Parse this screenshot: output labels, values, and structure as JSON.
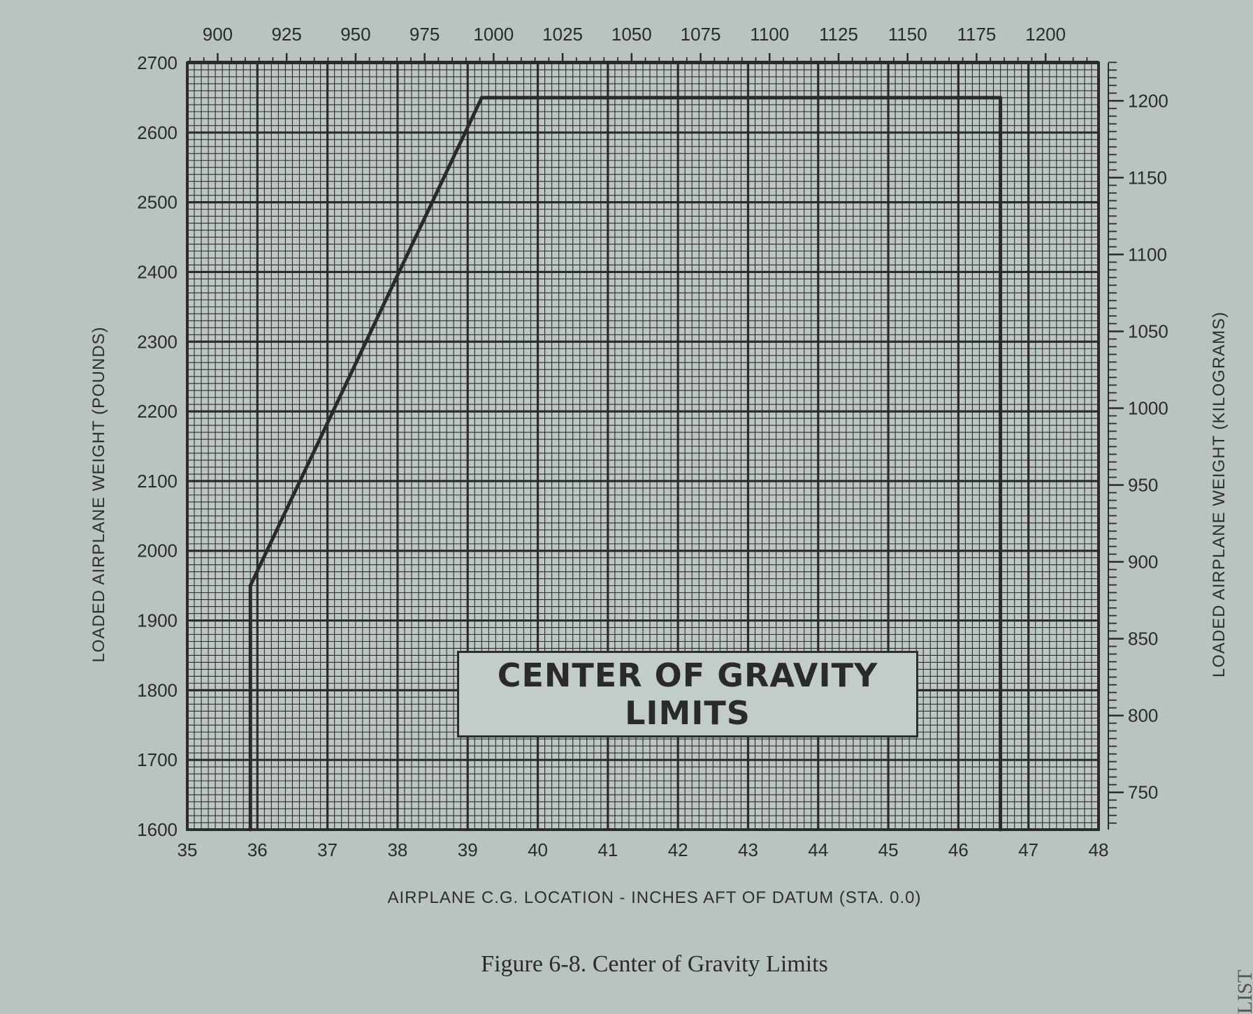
{
  "chart_data": {
    "type": "line",
    "title": "CENTER OF GRAVITY LIMITS",
    "title_line1": "CENTER OF GRAVITY",
    "title_line2": "LIMITS",
    "caption": "Figure 6-8.   Center of Gravity Limits",
    "xlabel": "AIRPLANE C.G. LOCATION - INCHES AFT OF DATUM (STA. 0.0)",
    "ylabel_left": "LOADED AIRPLANE WEIGHT (POUNDS)",
    "ylabel_right": "LOADED AIRPLANE WEIGHT (KILOGRAMS)",
    "xlim": [
      35,
      48
    ],
    "ylim": [
      1600,
      2700
    ],
    "x_ticks": [
      "35",
      "36",
      "37",
      "38",
      "39",
      "40",
      "41",
      "42",
      "43",
      "44",
      "45",
      "46",
      "47",
      "48"
    ],
    "y_ticks_left": [
      "1600",
      "1700",
      "1800",
      "1900",
      "2000",
      "2100",
      "2200",
      "2300",
      "2400",
      "2500",
      "2600",
      "2700"
    ],
    "top_axis": {
      "unit": "millimeters",
      "range": [
        900,
        1219.2
      ],
      "ticks": [
        "900",
        "925",
        "950",
        "975",
        "1000",
        "1025",
        "1050",
        "1075",
        "1100",
        "1125",
        "1150",
        "1175",
        "1200"
      ]
    },
    "right_axis": {
      "unit": "kilograms",
      "ticks": [
        "750",
        "800",
        "850",
        "900",
        "950",
        "1000",
        "1050",
        "1100",
        "1150",
        "1200"
      ]
    },
    "grid": true,
    "series": [
      {
        "values": [
          {
            "x": 35.9,
            "y": 1600
          },
          {
            "x": 35.9,
            "y": 1950
          },
          {
            "x": 39.2,
            "y": 2650
          },
          {
            "x": 46.6,
            "y": 2650
          },
          {
            "x": 46.6,
            "y": 1600
          }
        ]
      }
    ]
  },
  "edge_text": "LIST"
}
